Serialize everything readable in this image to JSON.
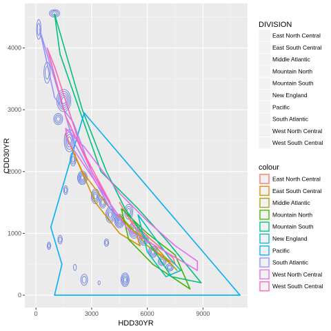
{
  "chart_data": {
    "type": "scatter",
    "title": "",
    "xlabel": "HDD30YR",
    "ylabel": "CDD30YR",
    "xlim": [
      -600,
      11400
    ],
    "ylim": [
      -200,
      4720
    ],
    "x_ticks": [
      0,
      3000,
      6000,
      9000
    ],
    "x_tick_labels": [
      "0",
      "3000",
      "6000",
      "9000"
    ],
    "y_ticks": [
      0,
      1000,
      2000,
      3000,
      4000
    ],
    "y_tick_labels": [
      "0",
      "1000",
      "2000",
      "3000",
      "4000"
    ],
    "grid": true,
    "legend_division": {
      "title": "DIVISION",
      "placement": "right",
      "entries": [
        "East North Central",
        "East South Central",
        "Middle Atlantic",
        "Mountain North",
        "Mountain South",
        "New England",
        "Pacific",
        "South Atlantic",
        "West North Central",
        "West South Central"
      ]
    },
    "legend_colour": {
      "title": "colour",
      "placement": "right",
      "entries": [
        {
          "name": "East North Central",
          "color": "#F8766D"
        },
        {
          "name": "East South Central",
          "color": "#D89000"
        },
        {
          "name": "Middle Atlantic",
          "color": "#A3A500"
        },
        {
          "name": "Mountain North",
          "color": "#39B600"
        },
        {
          "name": "Mountain South",
          "color": "#00BF7D"
        },
        {
          "name": "New England",
          "color": "#00BFC4"
        },
        {
          "name": "Pacific",
          "color": "#00B0F6"
        },
        {
          "name": "South Atlantic",
          "color": "#9590FF"
        },
        {
          "name": "West North Central",
          "color": "#E76BF3"
        },
        {
          "name": "West South Central",
          "color": "#FF62BC"
        }
      ]
    },
    "hulls": [
      {
        "name": "East North Central",
        "color": "#F8766D",
        "points": [
          [
            4500,
            1500
          ],
          [
            5200,
            1150
          ],
          [
            6500,
            700
          ],
          [
            7500,
            500
          ],
          [
            7400,
            600
          ],
          [
            6200,
            900
          ],
          [
            5000,
            1250
          ]
        ]
      },
      {
        "name": "East South Central",
        "color": "#D89000",
        "points": [
          [
            1600,
            2600
          ],
          [
            3200,
            1500
          ],
          [
            4500,
            1000
          ],
          [
            5600,
            800
          ],
          [
            5400,
            1000
          ],
          [
            4000,
            1400
          ],
          [
            2500,
            2000
          ]
        ]
      },
      {
        "name": "Middle Atlantic",
        "color": "#A3A500",
        "points": [
          [
            4500,
            1300
          ],
          [
            6000,
            800
          ],
          [
            7300,
            500
          ],
          [
            7600,
            400
          ],
          [
            6400,
            800
          ],
          [
            5000,
            1100
          ]
        ]
      },
      {
        "name": "Mountain North",
        "color": "#39B600",
        "points": [
          [
            4600,
            1400
          ],
          [
            6000,
            1000
          ],
          [
            7500,
            650
          ],
          [
            8300,
            100
          ],
          [
            6300,
            500
          ],
          [
            5000,
            900
          ]
        ]
      },
      {
        "name": "Mountain South",
        "color": "#00BF7D",
        "points": [
          [
            1000,
            4550
          ],
          [
            1300,
            3900
          ],
          [
            3500,
            2000
          ],
          [
            5500,
            1400
          ],
          [
            7000,
            900
          ],
          [
            8900,
            200
          ],
          [
            7300,
            300
          ],
          [
            6200,
            800
          ],
          [
            4800,
            1400
          ],
          [
            3800,
            2000
          ],
          [
            2500,
            3000
          ]
        ]
      },
      {
        "name": "New England",
        "color": "#00BFC4",
        "points": [
          [
            5500,
            1300
          ],
          [
            7200,
            600
          ],
          [
            7800,
            400
          ],
          [
            7000,
            300
          ],
          [
            6000,
            700
          ]
        ]
      },
      {
        "name": "Pacific",
        "color": "#00B0F6",
        "points": [
          [
            800,
            1100
          ],
          [
            2600,
            2950
          ],
          [
            11000,
            0
          ],
          [
            1000,
            0
          ],
          [
            1400,
            500
          ]
        ]
      },
      {
        "name": "South Atlantic",
        "color": "#9590FF",
        "points": [
          [
            200,
            4300
          ],
          [
            1000,
            3200
          ],
          [
            2000,
            2800
          ],
          [
            3000,
            2000
          ],
          [
            4500,
            1200
          ],
          [
            4000,
            1400
          ],
          [
            2000,
            2500
          ],
          [
            600,
            3900
          ]
        ]
      },
      {
        "name": "West North Central",
        "color": "#E76BF3",
        "points": [
          [
            1600,
            2700
          ],
          [
            2600,
            2400
          ],
          [
            4500,
            1650
          ],
          [
            6000,
            1200
          ],
          [
            7500,
            800
          ],
          [
            8700,
            550
          ],
          [
            8700,
            400
          ],
          [
            7000,
            700
          ],
          [
            5000,
            1050
          ],
          [
            3500,
            1700
          ],
          [
            1700,
            2500
          ]
        ]
      },
      {
        "name": "West South Central",
        "color": "#FF62BC",
        "points": [
          [
            600,
            4000
          ],
          [
            1600,
            2900
          ],
          [
            3000,
            2000
          ],
          [
            4000,
            1500
          ],
          [
            2400,
            2400
          ],
          [
            1000,
            3700
          ]
        ]
      }
    ],
    "density_series": {
      "name": "South Atlantic",
      "color": "#5B74E0",
      "centers": [
        [
          1000,
          4560
        ],
        [
          150,
          4300
        ],
        [
          600,
          3600
        ],
        [
          1500,
          3150
        ],
        [
          1200,
          2850
        ],
        [
          1800,
          2500
        ],
        [
          2500,
          1900
        ],
        [
          3200,
          1600
        ],
        [
          3600,
          1500
        ],
        [
          4000,
          1300
        ],
        [
          4500,
          1200
        ],
        [
          5300,
          1050
        ],
        [
          5800,
          900
        ],
        [
          6300,
          700
        ],
        [
          6800,
          550
        ],
        [
          7200,
          450
        ],
        [
          1600,
          1700
        ],
        [
          1300,
          900
        ],
        [
          700,
          800
        ],
        [
          2600,
          250
        ],
        [
          3400,
          200
        ],
        [
          4800,
          250
        ],
        [
          2100,
          450
        ],
        [
          5000,
          1350
        ],
        [
          3800,
          850
        ],
        [
          2000,
          2200
        ]
      ],
      "rx": [
        280,
        120,
        170,
        380,
        240,
        280,
        260,
        220,
        180,
        240,
        260,
        300,
        260,
        240,
        220,
        200,
        110,
        120,
        90,
        180,
        60,
        220,
        80,
        220,
        120,
        160
      ],
      "ry": [
        60,
        160,
        170,
        180,
        90,
        180,
        110,
        120,
        90,
        130,
        110,
        130,
        90,
        90,
        70,
        60,
        70,
        70,
        60,
        90,
        30,
        110,
        50,
        120,
        60,
        110
      ],
      "rings": [
        3,
        2,
        2,
        5,
        3,
        4,
        5,
        4,
        3,
        4,
        5,
        5,
        4,
        4,
        3,
        3,
        2,
        2,
        2,
        2,
        1,
        4,
        1,
        3,
        2,
        3
      ]
    }
  }
}
